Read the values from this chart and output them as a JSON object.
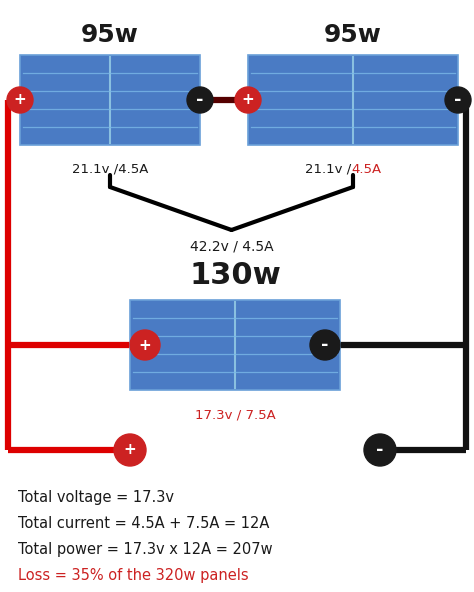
{
  "bg_color": "#ffffff",
  "positive_color": "#cc2222",
  "negative_color": "#1a1a1a",
  "wire_red": "#dd0000",
  "wire_black": "#111111",
  "text_color": "#1a1a1a",
  "text_red": "#cc2222",
  "panel1_label": "95w",
  "panel2_label": "95w",
  "panel3_label": "130w",
  "v1_text": "21.1v /4.5A",
  "v2_black": "21.1v /",
  "v2_red": "4.5A",
  "v3_text": "17.3v / 7.5A",
  "v12_text": "42.2v / 4.5A",
  "total_lines": [
    "Total voltage = 17.3v",
    "Total current = 4.5A + 7.5A = 12A",
    "Total power = 17.3v x 12A = 207w",
    "Loss = 35% of the 320w panels"
  ],
  "total_colors": [
    "#1a1a1a",
    "#1a1a1a",
    "#1a1a1a",
    "#cc2222"
  ],
  "figw": 4.74,
  "figh": 5.92,
  "dpi": 100
}
